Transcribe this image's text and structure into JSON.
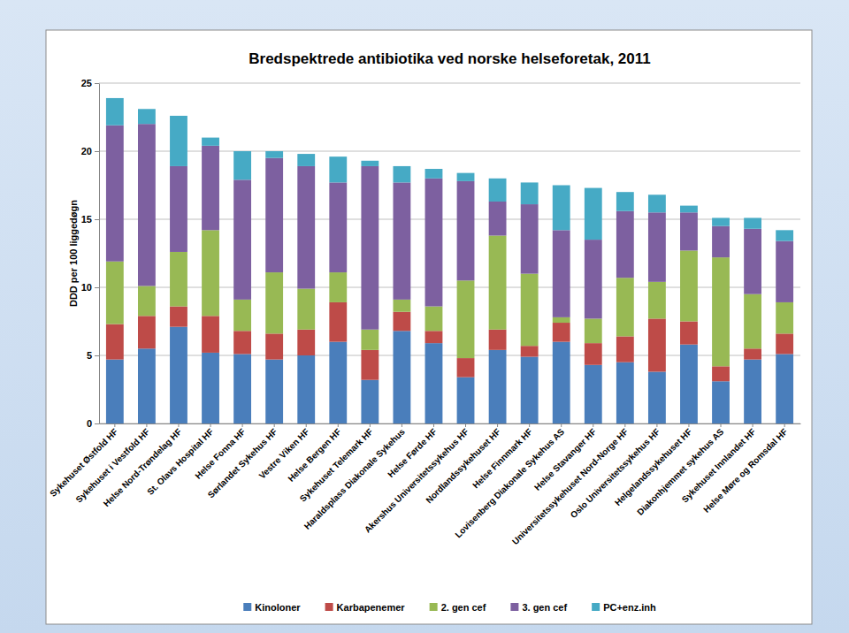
{
  "chart_data": {
    "type": "bar",
    "stacked": true,
    "grid": true,
    "legend": "bottom",
    "title": "Bredspektrede antibiotika ved norske helseforetak, 2011",
    "ylabel": "DDD per 100 liggedøgn",
    "ylim": [
      0,
      25
    ],
    "yticks": [
      0,
      5,
      10,
      15,
      20,
      25
    ],
    "categories": [
      "Sykehuset Østfold HF",
      "Sykehuset i Vestfold HF",
      "Helse Nord-Trøndelag HF",
      "St. Olavs Hospital HF",
      "Helse Fonna HF",
      "Sørlandet Sykehus HF",
      "Vestre Viken HF",
      "Helse Bergen HF",
      "Sykehuset Telemark HF",
      "Haraldsplass Diakonale Sykehus",
      "Helse Førde HF",
      "Akershus Universitetssykehus HF",
      "Nordlandssykehuset HF",
      "Helse Finnmark HF",
      "Lovisenberg Diakonale Sykehus AS",
      "Helse Stavanger HF",
      "Universitetssykehuset Nord-Norge HF",
      "Oslo Universitetssykehus HF",
      "Helgelandssykehuset HF",
      "Diakonhjemmet sykehus AS",
      "Sykehuset Innlandet HF",
      "Helse Møre og Romsdal HF"
    ],
    "series": [
      {
        "name": "Kinoloner",
        "color": "#4a7ebb",
        "values": [
          4.7,
          5.5,
          7.1,
          5.2,
          5.1,
          4.7,
          5.0,
          6.0,
          3.2,
          6.8,
          5.9,
          3.4,
          5.4,
          4.9,
          6.0,
          4.3,
          4.5,
          3.8,
          5.8,
          3.1,
          4.7,
          5.1
        ]
      },
      {
        "name": "Karbapenemer",
        "color": "#be4b48",
        "values": [
          2.6,
          2.4,
          1.5,
          2.7,
          1.7,
          1.9,
          1.9,
          2.9,
          2.2,
          1.4,
          0.9,
          1.4,
          1.5,
          0.8,
          1.4,
          1.6,
          1.9,
          3.9,
          1.7,
          1.1,
          0.8,
          1.5
        ]
      },
      {
        "name": "2. gen cef",
        "color": "#98b954",
        "values": [
          4.6,
          2.2,
          4.0,
          6.3,
          2.3,
          4.5,
          3.0,
          2.2,
          1.5,
          0.9,
          1.8,
          5.7,
          6.9,
          5.3,
          0.4,
          1.8,
          4.3,
          2.7,
          5.2,
          8.0,
          4.0,
          2.3
        ]
      },
      {
        "name": "3. gen cef",
        "color": "#7d60a0",
        "values": [
          10.0,
          11.9,
          6.3,
          6.2,
          8.8,
          8.4,
          9.0,
          6.6,
          12.0,
          8.6,
          9.4,
          7.3,
          2.5,
          5.1,
          6.4,
          5.8,
          4.9,
          5.1,
          2.8,
          2.3,
          4.8,
          4.5
        ]
      },
      {
        "name": "PC+enz.inh",
        "color": "#46aac5",
        "values": [
          2.0,
          1.1,
          3.7,
          0.6,
          2.1,
          0.5,
          0.9,
          1.9,
          0.4,
          1.2,
          0.7,
          0.6,
          1.7,
          1.6,
          3.3,
          3.8,
          1.4,
          1.3,
          0.5,
          0.6,
          0.8,
          0.8
        ]
      }
    ]
  }
}
